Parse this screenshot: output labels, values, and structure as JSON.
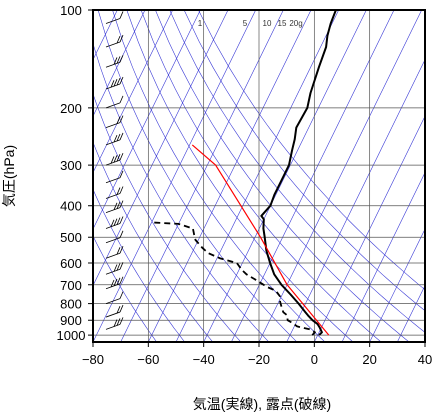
{
  "chart_data": {
    "type": "line",
    "subtype": "skew-t log-p thermodynamic diagram",
    "xlabel": "気温(実線), 露点(破線)",
    "ylabel": "気圧(hPa)",
    "xlim": [
      -80,
      40
    ],
    "ylim_hPa": [
      1050,
      100
    ],
    "y_scale": "log",
    "x_ticks": [
      "−80",
      "−60",
      "−40",
      "−20",
      "0",
      "20",
      "40"
    ],
    "x_tick_values": [
      -80,
      -60,
      -40,
      -20,
      0,
      20,
      40
    ],
    "y_ticks": [
      "100",
      "200",
      "300",
      "400",
      "500",
      "600",
      "700",
      "800",
      "900",
      "1000"
    ],
    "y_tick_values": [
      100,
      200,
      300,
      400,
      500,
      600,
      700,
      800,
      900,
      1000
    ],
    "grid": true,
    "mixing_ratio_labels": [
      "1",
      "5",
      "10",
      "15",
      "20g"
    ],
    "colors": {
      "temperature": "#000000",
      "dewpoint": "#000000",
      "parcel": "#ff0000",
      "background_lines": "#3a3ad6",
      "grid": "#555555",
      "wind_barbs": "#000000"
    },
    "series": [
      {
        "role": "temperature",
        "style": "solid",
        "points": [
          [
            1000,
            0.5
          ],
          [
            980,
            1.0
          ],
          [
            950,
            -0.5
          ],
          [
            925,
            -2.0
          ],
          [
            900,
            -4.5
          ],
          [
            870,
            -7.0
          ],
          [
            850,
            -8.5
          ],
          [
            800,
            -12.5
          ],
          [
            750,
            -17.0
          ],
          [
            700,
            -22.0
          ],
          [
            650,
            -26.5
          ],
          [
            600,
            -30.0
          ],
          [
            550,
            -33.5
          ],
          [
            500,
            -36.5
          ],
          [
            470,
            -38.5
          ],
          [
            440,
            -40.0
          ],
          [
            430,
            -41.5
          ],
          [
            400,
            -40.0
          ],
          [
            370,
            -40.5
          ],
          [
            340,
            -40.5
          ],
          [
            300,
            -40.5
          ],
          [
            270,
            -42.0
          ],
          [
            250,
            -43.0
          ],
          [
            230,
            -44.5
          ],
          [
            200,
            -44.0
          ],
          [
            180,
            -45.5
          ],
          [
            150,
            -47.0
          ],
          [
            130,
            -48.0
          ],
          [
            120,
            -49.5
          ],
          [
            110,
            -50.5
          ],
          [
            100,
            -51.0
          ]
        ]
      },
      {
        "role": "dewpoint",
        "style": "dashed",
        "points": [
          [
            1000,
            -2.0
          ],
          [
            980,
            -1.5
          ],
          [
            960,
            -4.0
          ],
          [
            940,
            -9.0
          ],
          [
            920,
            -11.0
          ],
          [
            900,
            -13.5
          ],
          [
            870,
            -14.5
          ],
          [
            850,
            -16.5
          ],
          [
            820,
            -18.0
          ],
          [
            790,
            -19.5
          ],
          [
            760,
            -20.5
          ],
          [
            730,
            -23.0
          ],
          [
            710,
            -27.0
          ],
          [
            680,
            -31.5
          ],
          [
            650,
            -36.5
          ],
          [
            630,
            -39.0
          ],
          [
            600,
            -42.0
          ],
          [
            580,
            -49.0
          ],
          [
            560,
            -54.0
          ],
          [
            540,
            -57.0
          ],
          [
            510,
            -61.0
          ],
          [
            490,
            -62.5
          ],
          [
            470,
            -64.0
          ],
          [
            455,
            -70.0
          ],
          [
            450,
            -80.0
          ]
        ]
      },
      {
        "role": "parcel",
        "style": "solid",
        "points": [
          [
            1000,
            4.0
          ],
          [
            700,
            -20.0
          ],
          [
            500,
            -38.0
          ],
          [
            300,
            -67.0
          ],
          [
            260,
            -79.0
          ]
        ]
      }
    ]
  }
}
